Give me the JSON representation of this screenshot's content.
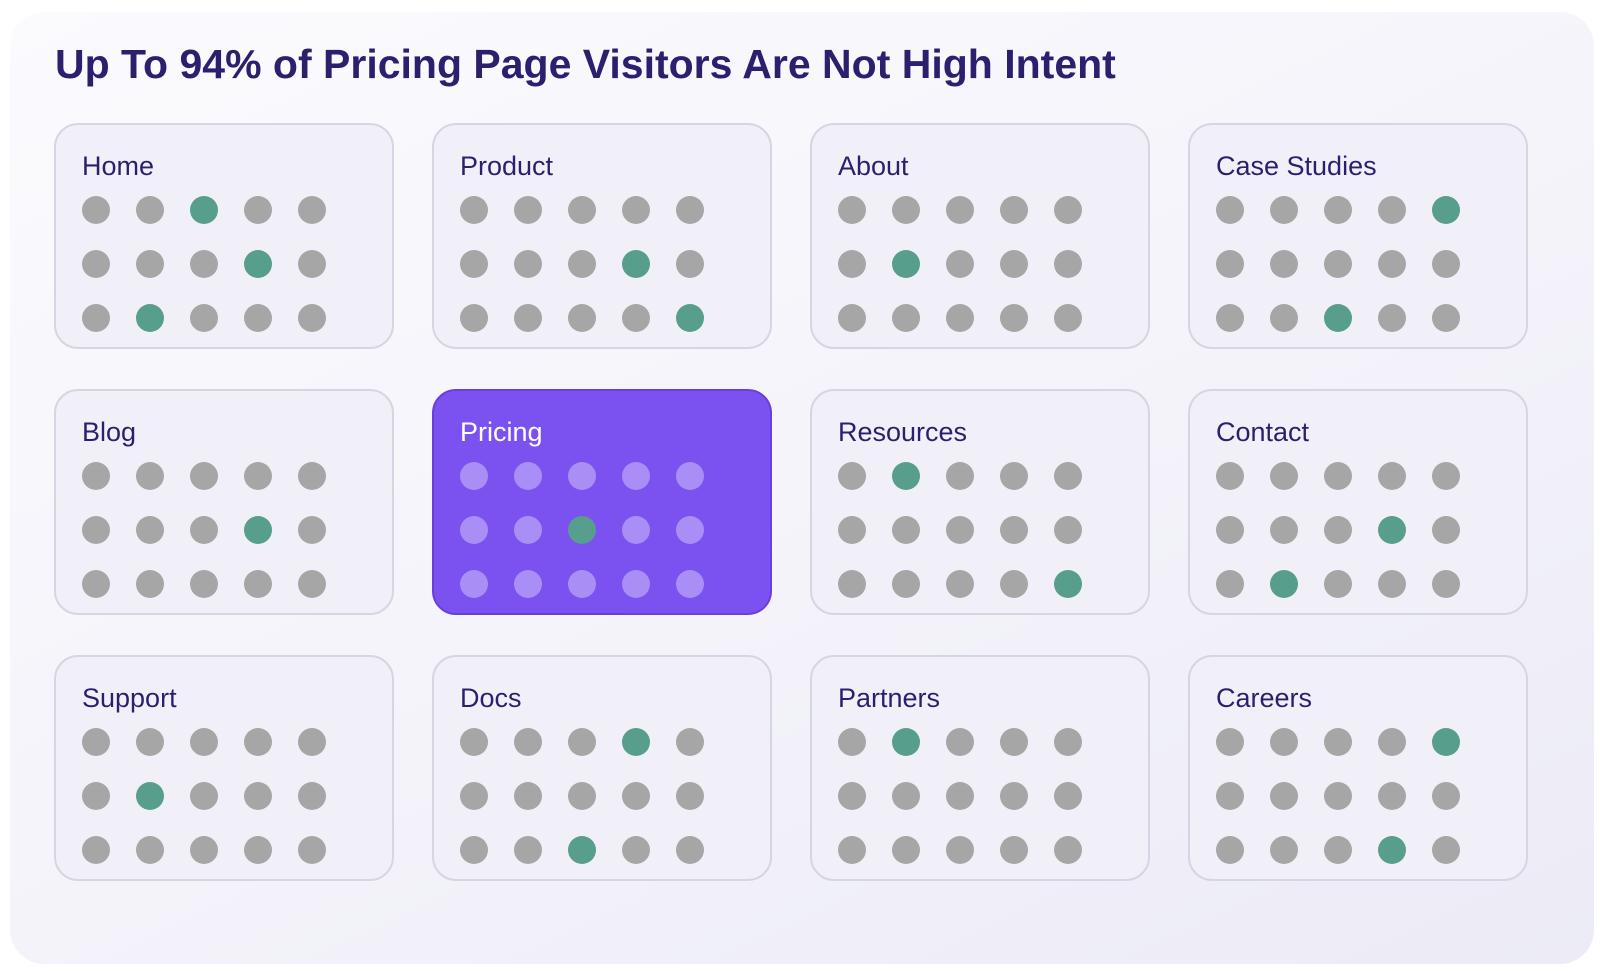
{
  "title": "Up To 94% of Pricing Page Visitors Are Not High Intent",
  "colors": {
    "title": "#2d1f6e",
    "card_background": "#f1f0f8",
    "highlight_card": "#7b52ef",
    "dot_inactive": "#a6a6a6",
    "dot_inactive_on_highlight": "#a98ef6",
    "dot_active": "#579e8c"
  },
  "pages": [
    {
      "label": "Home",
      "highlighted": false,
      "active_dots": [
        2,
        8,
        11
      ]
    },
    {
      "label": "Product",
      "highlighted": false,
      "active_dots": [
        8,
        14
      ]
    },
    {
      "label": "About",
      "highlighted": false,
      "active_dots": [
        6
      ]
    },
    {
      "label": "Case Studies",
      "highlighted": false,
      "active_dots": [
        4,
        12
      ]
    },
    {
      "label": "Blog",
      "highlighted": false,
      "active_dots": [
        8
      ]
    },
    {
      "label": "Pricing",
      "highlighted": true,
      "active_dots": [
        7
      ]
    },
    {
      "label": "Resources",
      "highlighted": false,
      "active_dots": [
        1,
        14
      ]
    },
    {
      "label": "Contact",
      "highlighted": false,
      "active_dots": [
        8,
        11
      ]
    },
    {
      "label": "Support",
      "highlighted": false,
      "active_dots": [
        6
      ]
    },
    {
      "label": "Docs",
      "highlighted": false,
      "active_dots": [
        3,
        12
      ]
    },
    {
      "label": "Partners",
      "highlighted": false,
      "active_dots": [
        1
      ]
    },
    {
      "label": "Careers",
      "highlighted": false,
      "active_dots": [
        4,
        13
      ]
    }
  ]
}
